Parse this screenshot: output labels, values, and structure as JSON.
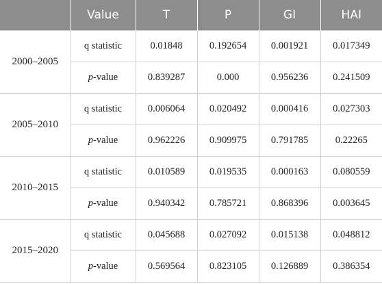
{
  "table": {
    "header": [
      "",
      "Value",
      "T",
      "P",
      "GI",
      "HAI"
    ],
    "groups": [
      {
        "period": "2000–2005",
        "rows": [
          {
            "label": "q statistic",
            "values": [
              "0.01848",
              "0.192654",
              "0.001921",
              "0.017349"
            ]
          },
          {
            "label": "p-value",
            "values": [
              "0.839287",
              "0.000",
              "0.956236",
              "0.241509"
            ]
          }
        ]
      },
      {
        "period": "2005–2010",
        "rows": [
          {
            "label": "q statistic",
            "values": [
              "0.006064",
              "0.020492",
              "0.000416",
              "0.027303"
            ]
          },
          {
            "label": "p-value",
            "values": [
              "0.962226",
              "0.909975",
              "0.791785",
              "0.22265"
            ]
          }
        ]
      },
      {
        "period": "2010–2015",
        "rows": [
          {
            "label": "q statistic",
            "values": [
              "0.010589",
              "0.019535",
              "0.000163",
              "0.080559"
            ]
          },
          {
            "label": "p-value",
            "values": [
              "0.940342",
              "0.785721",
              "0.868396",
              "0.003645"
            ]
          }
        ]
      },
      {
        "period": "2015–2020",
        "rows": [
          {
            "label": "q statistic",
            "values": [
              "0.045688",
              "0.027092",
              "0.015138",
              "0.048812"
            ]
          },
          {
            "label": "p-value",
            "values": [
              "0.569564",
              "0.823105",
              "0.126889",
              "0.386354"
            ]
          }
        ]
      }
    ]
  }
}
